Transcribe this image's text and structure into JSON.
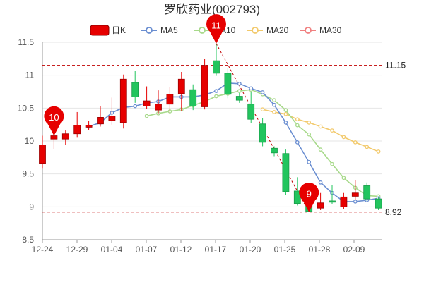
{
  "title": "罗欣药业(002793)",
  "chart_data": {
    "type": "candlestick",
    "title": "罗欣药业(002793)",
    "ylim": [
      8.5,
      11.5
    ],
    "yticks": [
      "8.5",
      "9",
      "9.5",
      "10",
      "10.5",
      "11",
      "11.5"
    ],
    "xtick_labels": [
      "12-24",
      "12-29",
      "01-04",
      "01-07",
      "01-12",
      "01-17",
      "01-20",
      "01-25",
      "01-28",
      "02-09"
    ],
    "xtick_index": [
      0,
      4,
      8,
      12,
      16,
      20,
      24,
      28,
      32,
      36
    ],
    "grid": "horizontal",
    "legend": {
      "position": "top",
      "items": [
        {
          "key": "k",
          "label": "日K",
          "color": "#e60000"
        },
        {
          "key": "ma5",
          "label": "MA5",
          "color": "#6a8ed1"
        },
        {
          "key": "ma10",
          "label": "MA10",
          "color": "#a7d98a"
        },
        {
          "key": "ma20",
          "label": "MA20",
          "color": "#f2c96b"
        },
        {
          "key": "ma30",
          "label": "MA30",
          "color": "#f08080"
        }
      ]
    },
    "candles": [
      {
        "o": 9.66,
        "c": 9.94,
        "h": 10.08,
        "l": 9.58
      },
      {
        "o": 10.03,
        "c": 10.08,
        "h": 10.34,
        "l": 9.88
      },
      {
        "o": 10.03,
        "c": 10.11,
        "h": 10.16,
        "l": 9.94
      },
      {
        "o": 10.11,
        "c": 10.24,
        "h": 10.44,
        "l": 10.05
      },
      {
        "o": 10.21,
        "c": 10.24,
        "h": 10.31,
        "l": 10.17
      },
      {
        "o": 10.26,
        "c": 10.36,
        "h": 10.53,
        "l": 10.22
      },
      {
        "o": 10.31,
        "c": 10.38,
        "h": 10.66,
        "l": 10.25
      },
      {
        "o": 10.28,
        "c": 10.94,
        "h": 11.01,
        "l": 10.19
      },
      {
        "o": 10.89,
        "c": 10.67,
        "h": 11.07,
        "l": 10.58
      },
      {
        "o": 10.53,
        "c": 10.61,
        "h": 10.83,
        "l": 10.49
      },
      {
        "o": 10.47,
        "c": 10.56,
        "h": 10.77,
        "l": 10.42
      },
      {
        "o": 10.56,
        "c": 10.71,
        "h": 10.82,
        "l": 10.43
      },
      {
        "o": 10.72,
        "c": 10.94,
        "h": 11.05,
        "l": 10.46
      },
      {
        "o": 10.78,
        "c": 10.53,
        "h": 10.86,
        "l": 10.47
      },
      {
        "o": 10.52,
        "c": 11.15,
        "h": 11.25,
        "l": 10.48
      },
      {
        "o": 11.22,
        "c": 11.03,
        "h": 11.48,
        "l": 10.99
      },
      {
        "o": 11.03,
        "c": 10.71,
        "h": 11.11,
        "l": 10.65
      },
      {
        "o": 10.68,
        "c": 10.62,
        "h": 10.73,
        "l": 10.58
      },
      {
        "o": 10.56,
        "c": 10.33,
        "h": 10.74,
        "l": 10.27
      },
      {
        "o": 10.26,
        "c": 9.98,
        "h": 10.35,
        "l": 9.92
      },
      {
        "o": 9.89,
        "c": 9.82,
        "h": 9.92,
        "l": 9.77
      },
      {
        "o": 9.81,
        "c": 9.23,
        "h": 9.87,
        "l": 9.18
      },
      {
        "o": 9.24,
        "c": 9.05,
        "h": 9.45,
        "l": 9.02
      },
      {
        "o": 9.04,
        "c": 8.93,
        "h": 9.21,
        "l": 8.92
      },
      {
        "o": 8.98,
        "c": 9.06,
        "h": 9.21,
        "l": 8.95
      },
      {
        "o": 9.09,
        "c": 9.07,
        "h": 9.33,
        "l": 9.04
      },
      {
        "o": 9.0,
        "c": 9.15,
        "h": 9.21,
        "l": 8.97
      },
      {
        "o": 9.16,
        "c": 9.21,
        "h": 9.41,
        "l": 9.1
      },
      {
        "o": 9.32,
        "c": 9.12,
        "h": 9.37,
        "l": 9.09
      },
      {
        "o": 9.12,
        "c": 8.98,
        "h": 9.15,
        "l": 8.95
      }
    ],
    "ma5": [
      null,
      null,
      null,
      null,
      10.22,
      10.28,
      10.43,
      10.51,
      10.53,
      10.58,
      10.6,
      10.67,
      10.67,
      10.67,
      10.7,
      10.76,
      10.88,
      10.87,
      10.8,
      10.74,
      10.55,
      10.28,
      9.98,
      9.68,
      9.37,
      9.21,
      9.08,
      9.08,
      9.1,
      9.13
    ],
    "ma10": [
      null,
      null,
      null,
      null,
      null,
      null,
      null,
      null,
      null,
      10.38,
      10.42,
      10.45,
      10.48,
      10.54,
      10.6,
      10.68,
      10.72,
      10.76,
      10.78,
      10.71,
      10.62,
      10.47,
      10.24,
      10.1,
      9.87,
      9.65,
      9.44,
      9.29,
      9.17,
      9.16
    ],
    "ma20": [
      null,
      null,
      null,
      null,
      null,
      null,
      null,
      null,
      null,
      null,
      null,
      null,
      null,
      null,
      null,
      null,
      null,
      null,
      null,
      10.48,
      10.44,
      10.41,
      10.33,
      10.28,
      10.22,
      10.16,
      10.06,
      9.98,
      9.91,
      9.84
    ],
    "ma30": [],
    "reference_lines": [
      {
        "value": 11.15,
        "label": "11.15"
      },
      {
        "value": 8.92,
        "label": "8.92"
      }
    ],
    "markers": [
      {
        "label": "10",
        "index": 1,
        "value": 10.08,
        "color": "#e60000"
      },
      {
        "label": "11",
        "index": 15,
        "value": 11.48,
        "color": "#e60000"
      },
      {
        "label": "9",
        "index": 23,
        "value": 8.92,
        "color": "#e60000"
      }
    ],
    "up_color": "#e60000",
    "down_color": "#22c55e"
  }
}
